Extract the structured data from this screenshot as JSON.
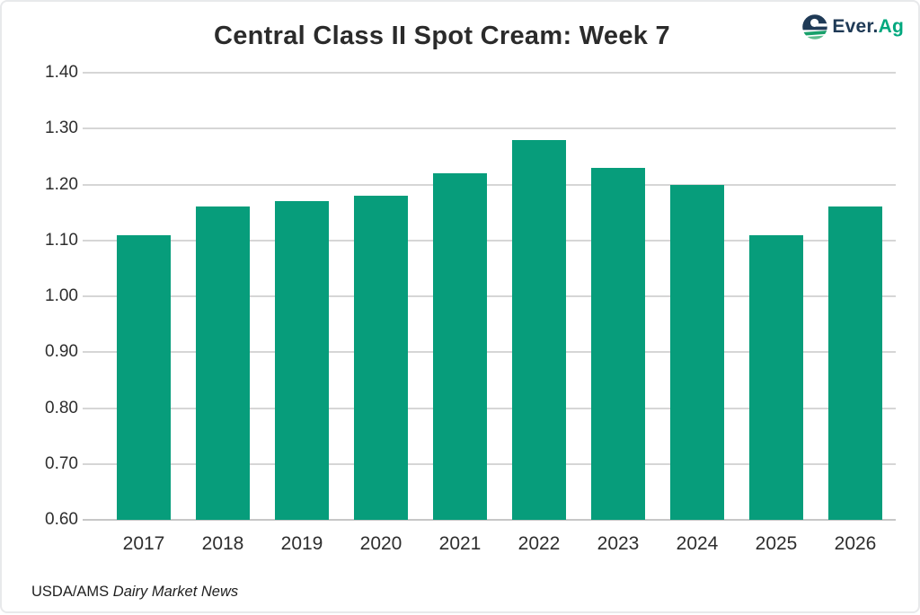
{
  "title": "Central Class II Spot Cream: Week 7",
  "logo": {
    "brand_primary": "Ever.",
    "brand_secondary": "Ag",
    "navy": "#1f3a56",
    "green": "#00a87e"
  },
  "source": {
    "prefix": "USDA/AMS ",
    "publication": "Dairy Market News"
  },
  "chart_data": {
    "type": "bar",
    "title": "Central Class II Spot Cream: Week 7",
    "categories": [
      "2017",
      "2018",
      "2019",
      "2020",
      "2021",
      "2022",
      "2023",
      "2024",
      "2025",
      "2026"
    ],
    "values": [
      1.11,
      1.16,
      1.17,
      1.18,
      1.22,
      1.28,
      1.23,
      1.2,
      1.11,
      1.16
    ],
    "xlabel": "",
    "ylabel": "",
    "ylim": [
      0.6,
      1.4
    ],
    "ytick_step": 0.1,
    "ytick_labels": [
      "0.60",
      "0.70",
      "0.80",
      "0.90",
      "1.00",
      "1.10",
      "1.20",
      "1.30",
      "1.40"
    ],
    "bar_color": "#079d7b",
    "grid": true,
    "legend": false
  }
}
